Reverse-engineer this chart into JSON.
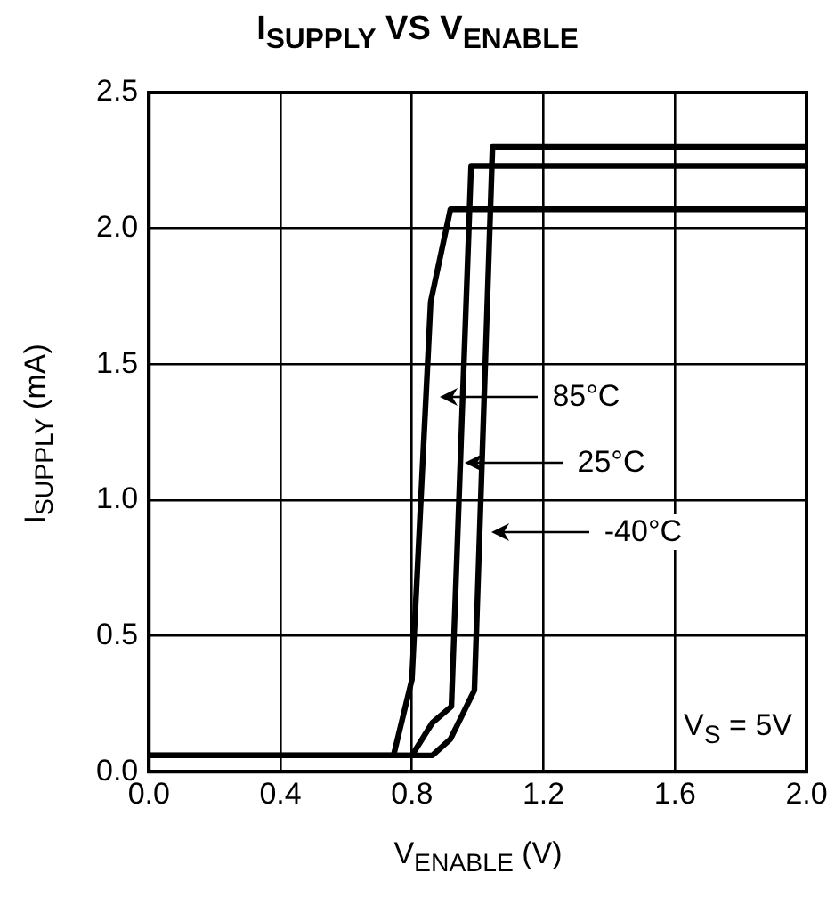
{
  "chart_data": {
    "type": "line",
    "title": "I$_{SUPPLY}$ VS V$_{ENABLE}$",
    "xlabel": "V$_{ENABLE}$ (V)",
    "ylabel": "I$_{SUPPLY}$ (mA)",
    "series": [
      {
        "name": "85°C",
        "color": "#000000",
        "x": [
          0,
          0.744,
          0.8,
          0.857,
          0.917,
          2.0
        ],
        "values": [
          0.06,
          0.06,
          0.34,
          1.73,
          2.07,
          2.07
        ]
      },
      {
        "name": "25°C",
        "color": "#000000",
        "x": [
          0,
          0.8,
          0.862,
          0.92,
          0.98,
          2.0
        ],
        "values": [
          0.06,
          0.06,
          0.18,
          0.24,
          2.23,
          2.23
        ]
      },
      {
        "name": "-40°C",
        "color": "#000000",
        "x": [
          0,
          0.862,
          0.917,
          0.99,
          1.045,
          2.0
        ],
        "values": [
          0.06,
          0.06,
          0.12,
          0.3,
          2.3,
          2.3
        ]
      }
    ],
    "annotations": [
      "V$_{S}$ = 5V"
    ],
    "xlim": [
      0,
      2.0
    ],
    "ylim": [
      0,
      2.5
    ],
    "xticks": [
      {
        "value": 0,
        "label": "0.0"
      },
      0.4,
      0.8,
      1.2,
      1.6,
      {
        "value": 2,
        "label": "2.0"
      }
    ],
    "yticks": [
      {
        "value": 0,
        "label": "0.0"
      },
      0.5,
      {
        "value": 1,
        "label": "1.0"
      },
      1.5,
      {
        "value": 2,
        "label": "2.0"
      },
      2.5
    ],
    "grid": true,
    "legend": "right",
    "marker": "none",
    "line_style": "solid"
  }
}
